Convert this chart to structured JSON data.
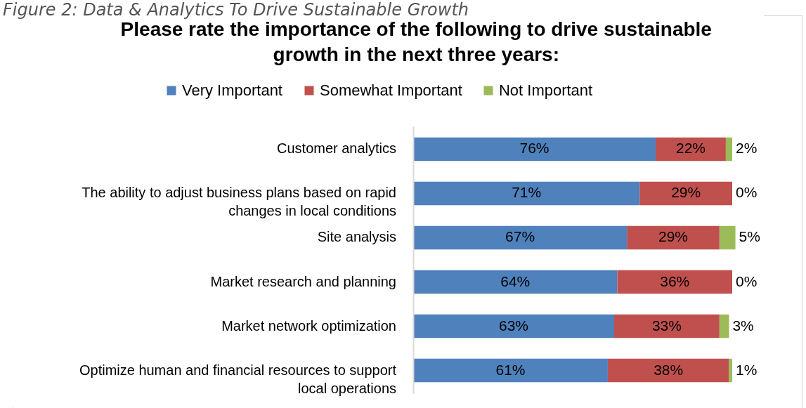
{
  "chart_data": {
    "type": "bar",
    "orientation": "horizontal",
    "stacked": true,
    "title": "Please rate the importance of the following to drive sustainable growth in the next three years:",
    "annotations": [
      "Figure 2: Data & Analytics To Drive Sustainable Growth"
    ],
    "categories": [
      "Customer analytics",
      "The ability to adjust business plans based on rapid changes in local conditions",
      "Site analysis",
      "Market research and planning",
      "Market network optimization",
      "Optimize human and financial resources to support local operations"
    ],
    "series": [
      {
        "name": "Very Important",
        "color": "#4f81bd",
        "values": [
          76,
          71,
          67,
          64,
          63,
          61
        ],
        "value_labels": [
          "76%",
          "71%",
          "67%",
          "64%",
          "63%",
          "61%"
        ]
      },
      {
        "name": "Somewhat Important",
        "color": "#c0504d",
        "values": [
          22,
          29,
          29,
          36,
          33,
          38
        ],
        "value_labels": [
          "22%",
          "29%",
          "29%",
          "36%",
          "33%",
          "38%"
        ]
      },
      {
        "name": "Not Important",
        "color": "#9bbb59",
        "values": [
          2,
          0,
          5,
          0,
          3,
          1
        ],
        "value_labels": [
          "2%",
          "0%",
          "5%",
          "0%",
          "3%",
          "1%"
        ]
      }
    ],
    "xlim": [
      0,
      101
    ],
    "tick_labels": "y",
    "legend": "top",
    "grid": false
  }
}
